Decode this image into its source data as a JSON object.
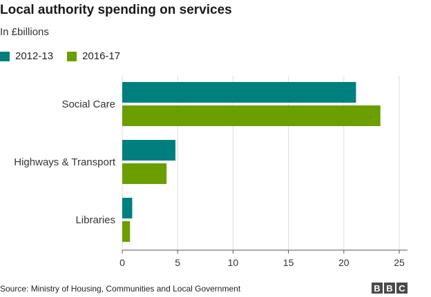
{
  "chart_data": {
    "type": "bar",
    "orientation": "horizontal",
    "title": "Local authority spending on services",
    "subtitle": "In £billions",
    "categories": [
      "Social Care",
      "Highways & Transport",
      "Libraries"
    ],
    "series": [
      {
        "name": "2012-13",
        "color": "#007f7f",
        "values": [
          21.1,
          4.8,
          0.9
        ]
      },
      {
        "name": "2016-17",
        "color": "#6b9e00",
        "values": [
          23.3,
          4.0,
          0.7
        ]
      }
    ],
    "xlim": [
      0,
      25
    ],
    "xticks": [
      "0",
      "5",
      "10",
      "15",
      "20",
      "25"
    ],
    "grid": true,
    "legend_position": "top-left"
  },
  "footer": {
    "source": "Source: Ministry of Housing, Communities and Local Government",
    "logo_letters": [
      "B",
      "B",
      "C"
    ]
  }
}
